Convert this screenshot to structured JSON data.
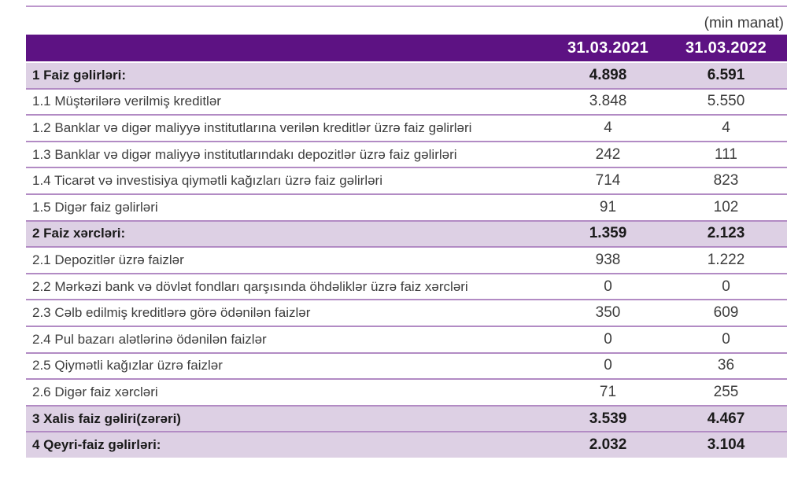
{
  "unit_note": "(min manat)",
  "table": {
    "columns": [
      "31.03.2021",
      "31.03.2022"
    ],
    "rows": [
      {
        "label": "1 Faiz gəlirləri:",
        "v2021": "4.898",
        "v2022": "6.591",
        "section": true
      },
      {
        "label": "1.1 Müştərilərə verilmiş kreditlər",
        "v2021": "3.848",
        "v2022": "5.550",
        "section": false
      },
      {
        "label": "1.2 Banklar və digər maliyyə institutlarına verilən kreditlər üzrə faiz gəlirləri",
        "v2021": "4",
        "v2022": "4",
        "section": false
      },
      {
        "label": "1.3 Banklar və digər maliyyə institutlarındakı depozitlər üzrə faiz gəlirləri",
        "v2021": "242",
        "v2022": "111",
        "section": false
      },
      {
        "label": "1.4 Ticarət və investisiya qiymətli kağızları üzrə faiz gəlirləri",
        "v2021": "714",
        "v2022": "823",
        "section": false
      },
      {
        "label": "1.5 Digər faiz gəlirləri",
        "v2021": "91",
        "v2022": "102",
        "section": false
      },
      {
        "label": "2 Faiz xərcləri:",
        "v2021": "1.359",
        "v2022": "2.123",
        "section": true
      },
      {
        "label": "2.1 Depozitlər üzrə faizlər",
        "v2021": "938",
        "v2022": "1.222",
        "section": false
      },
      {
        "label": "2.2 Mərkəzi bank və dövlət fondları qarşısında öhdəliklər üzrə faiz xərcləri",
        "v2021": "0",
        "v2022": "0",
        "section": false
      },
      {
        "label": "2.3 Cəlb edilmiş kreditlərə görə ödənilən faizlər",
        "v2021": "350",
        "v2022": "609",
        "section": false
      },
      {
        "label": "2.4 Pul bazarı alətlərinə ödənilən faizlər",
        "v2021": "0",
        "v2022": "0",
        "section": false
      },
      {
        "label": "2.5 Qiymətli kağızlar üzrə faizlər",
        "v2021": "0",
        "v2022": "36",
        "section": false
      },
      {
        "label": "2.6 Digər faiz xərcləri",
        "v2021": "71",
        "v2022": "255",
        "section": false
      },
      {
        "label": "3 Xalis faiz gəliri(zərəri)",
        "v2021": "3.539",
        "v2022": "4.467",
        "section": true
      },
      {
        "label": "4 Qeyri-faiz gəlirləri:",
        "v2021": "2.032",
        "v2022": "3.104",
        "section": true
      }
    ]
  },
  "colors": {
    "header_bg": "#5d1283",
    "section_row_bg": "#ddd0e4",
    "separator": "#b28bc4",
    "top_rule": "#bd97cc",
    "header_text": "#ffffff",
    "body_text": "#3d3d3d"
  }
}
